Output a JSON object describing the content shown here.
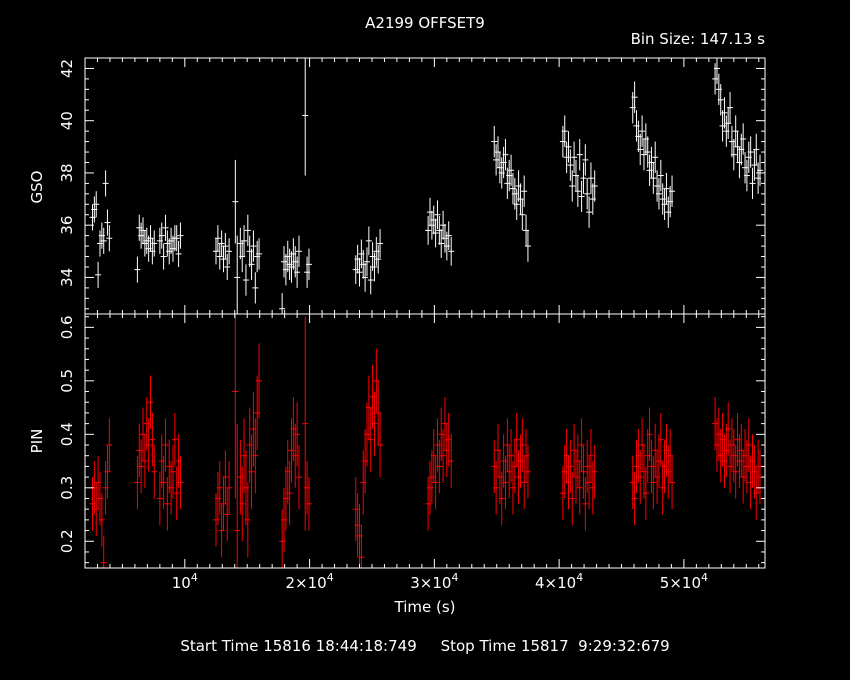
{
  "title": "A2199 OFFSET9",
  "bin_size": "Bin Size: 147.13 s",
  "footer": "Start Time 15816 18:44:18:749     Stop Time 15817  9:29:32:679",
  "colors": {
    "background": "#000000",
    "axes": "#ffffff",
    "gso": "#ffffff",
    "pin": "#ff0000"
  },
  "chart_data": [
    {
      "type": "scatter",
      "xlabel": "Time (s)",
      "ylabel": "GSO",
      "xlim": [
        2000,
        56500
      ],
      "ylim": [
        32.6,
        42.4
      ],
      "xticks": [
        10000,
        20000,
        30000,
        40000,
        50000
      ],
      "xticklabels": [
        {
          "base": "10",
          "exp": "4"
        },
        {
          "base": "2×10",
          "exp": "4"
        },
        {
          "base": "3×10",
          "exp": "4"
        },
        {
          "base": "4×10",
          "exp": "4"
        },
        {
          "base": "5×10",
          "exp": "4"
        }
      ],
      "yticks": [
        34,
        36,
        38,
        40,
        42
      ],
      "yticklabels": [
        "34",
        "36",
        "38",
        "40",
        "42"
      ],
      "error_bars": true,
      "segments": [
        {
          "x": [
            2600,
            2750,
            2900,
            3050,
            3200,
            3350,
            3500,
            3650,
            3800,
            3950
          ],
          "y": [
            36.3,
            36.6,
            36.8,
            34.1,
            35.3,
            35.6,
            35.4,
            37.6,
            36.1,
            35.5
          ],
          "err": 0.5
        },
        {
          "x": [
            6200,
            6350,
            6500,
            6650,
            6800,
            6950,
            7100,
            7250,
            7400,
            7550
          ],
          "y": [
            34.3,
            35.9,
            35.6,
            35.8,
            35.3,
            35.4,
            35.1,
            35.5,
            35.0,
            35.3
          ],
          "err": 0.5
        },
        {
          "x": [
            8000,
            8150,
            8300,
            8450,
            8600,
            8750,
            8900,
            9050,
            9200,
            9350,
            9500,
            9650
          ],
          "y": [
            35.4,
            35.6,
            34.8,
            35.9,
            35.3,
            35.0,
            35.4,
            35.1,
            35.5,
            35.5,
            34.9,
            35.6
          ],
          "err": 0.5
        },
        {
          "x": [
            12500,
            12650,
            12800,
            12950,
            13100,
            13250,
            13400,
            13550
          ],
          "y": [
            35.0,
            35.5,
            34.8,
            35.3,
            34.7,
            35.2,
            34.4,
            35.0
          ],
          "err": 0.5
        },
        {
          "x": [
            14050,
            14200
          ],
          "y": [
            36.9,
            34.0
          ],
          "err": 1.6
        },
        {
          "x": [
            14450,
            14600,
            14750,
            14900,
            15050,
            15200,
            15350,
            15500,
            15650,
            15800,
            15950
          ],
          "y": [
            35.3,
            34.8,
            35.4,
            33.9,
            35.8,
            35.0,
            34.5,
            35.2,
            33.6,
            34.8,
            34.9
          ],
          "err": 0.6
        },
        {
          "x": [
            17800,
            17950,
            18100,
            18250,
            18400,
            18550,
            18700,
            18850,
            19000,
            19150
          ],
          "y": [
            32.8,
            34.6,
            34.3,
            34.8,
            34.5,
            34.4,
            34.9,
            34.6,
            34.2,
            35.0
          ],
          "err": 0.6
        },
        {
          "x": [
            19650
          ],
          "y": [
            40.2
          ],
          "err": 2.3
        },
        {
          "x": [
            19800,
            19950
          ],
          "y": [
            34.2,
            34.5
          ],
          "err": 0.6
        },
        {
          "x": [
            23700,
            23850,
            24000,
            24150,
            24300,
            24450,
            24600,
            24750,
            24900,
            25050,
            25200,
            25350,
            25500,
            25650
          ],
          "y": [
            34.3,
            34.7,
            34.2,
            34.9,
            34.5,
            34.0,
            34.6,
            35.4,
            33.9,
            34.8,
            34.4,
            35.0,
            34.7,
            35.3
          ],
          "err": 0.55
        },
        {
          "x": [
            29500,
            29650,
            29800,
            29950,
            30100,
            30250,
            30400,
            30550,
            30700,
            30850,
            31000,
            31150,
            31350
          ],
          "y": [
            35.8,
            36.5,
            36.0,
            36.2,
            35.7,
            36.4,
            35.8,
            35.3,
            36.0,
            35.5,
            35.2,
            35.6,
            35.0
          ],
          "err": 0.55
        },
        {
          "x": [
            34800,
            34950,
            35100,
            35250,
            35400,
            35550,
            35700,
            35850,
            36000,
            36150,
            36300,
            36450,
            36600,
            36750,
            36900,
            37050,
            37200,
            37350,
            37500
          ],
          "y": [
            39.2,
            38.5,
            38.8,
            38.2,
            38.0,
            38.4,
            38.7,
            37.6,
            37.9,
            38.1,
            37.4,
            37.2,
            36.8,
            37.5,
            37.0,
            36.4,
            37.3,
            35.8,
            35.2
          ],
          "err": 0.6
        },
        {
          "x": [
            40300,
            40450,
            40600,
            40750,
            40900,
            41050,
            41200,
            41350,
            41500,
            41650,
            41800,
            41950,
            42100,
            42250,
            42400,
            42550,
            42700,
            42850
          ],
          "y": [
            39.2,
            39.6,
            38.6,
            39.0,
            38.3,
            37.5,
            38.6,
            37.9,
            37.3,
            38.7,
            37.1,
            37.8,
            38.5,
            37.2,
            36.5,
            37.8,
            37.0,
            37.5
          ],
          "err": 0.6
        },
        {
          "x": [
            45900,
            46050,
            46200,
            46350,
            46500,
            46650,
            46800,
            46950,
            47100,
            47250,
            47400,
            47550,
            47700,
            47850,
            48000,
            48150,
            48300,
            48450,
            48600,
            48750,
            48900,
            49050
          ],
          "y": [
            40.5,
            40.9,
            39.8,
            39.4,
            38.9,
            39.6,
            38.7,
            39.3,
            38.8,
            38.1,
            38.4,
            37.8,
            38.6,
            37.5,
            37.2,
            37.9,
            37.0,
            36.8,
            37.4,
            36.5,
            36.9,
            37.3
          ],
          "err": 0.6
        },
        {
          "x": [
            52500,
            52650,
            52800,
            52950,
            53100,
            53250,
            53400,
            53550,
            53700,
            53850,
            54000,
            54150,
            54300,
            54450,
            54600,
            54750,
            54900,
            55050,
            55200,
            55350,
            55500,
            55650,
            55800,
            55950,
            56100
          ],
          "y": [
            41.6,
            42.0,
            41.2,
            40.8,
            39.8,
            40.3,
            39.6,
            39.9,
            40.5,
            39.2,
            38.7,
            39.6,
            39.0,
            38.4,
            38.9,
            39.3,
            38.2,
            37.9,
            38.6,
            38.8,
            37.6,
            38.3,
            38.9,
            37.8,
            38.1
          ],
          "err": 0.6
        }
      ]
    },
    {
      "type": "scatter",
      "xlabel": "Time (s)",
      "ylabel": "PIN",
      "xlim": [
        2000,
        56500
      ],
      "ylim": [
        0.15,
        0.625
      ],
      "xticks": [
        10000,
        20000,
        30000,
        40000,
        50000
      ],
      "yticks": [
        0.2,
        0.3,
        0.4,
        0.5,
        0.6
      ],
      "yticklabels": [
        "0.2",
        "0.3",
        "0.4",
        "0.5",
        "0.6"
      ],
      "error_bars": true,
      "segments": [
        {
          "x": [
            2600,
            2750,
            2900,
            3050,
            3200,
            3350,
            3500,
            3650,
            3800,
            3950
          ],
          "y": [
            0.27,
            0.3,
            0.26,
            0.31,
            0.28,
            0.24,
            0.16,
            0.3,
            0.33,
            0.38
          ],
          "err": 0.05
        },
        {
          "x": [
            6200,
            6350,
            6500,
            6650,
            6800,
            6950,
            7100,
            7250,
            7400,
            7550
          ],
          "y": [
            0.31,
            0.37,
            0.34,
            0.4,
            0.35,
            0.42,
            0.38,
            0.46,
            0.39,
            0.33
          ],
          "err": 0.05
        },
        {
          "x": [
            8000,
            8150,
            8300,
            8450,
            8600,
            8750,
            8900,
            9050,
            9200,
            9350,
            9500,
            9650
          ],
          "y": [
            0.28,
            0.35,
            0.31,
            0.38,
            0.27,
            0.34,
            0.3,
            0.33,
            0.39,
            0.29,
            0.35,
            0.31
          ],
          "err": 0.05
        },
        {
          "x": [
            12500,
            12650,
            12800,
            12950,
            13100,
            13250,
            13400,
            13550
          ],
          "y": [
            0.24,
            0.28,
            0.3,
            0.22,
            0.27,
            0.32,
            0.25,
            0.3
          ],
          "err": 0.05
        },
        {
          "x": [
            14050,
            14200
          ],
          "y": [
            0.48,
            0.22
          ],
          "err": 0.2
        },
        {
          "x": [
            14450,
            14600,
            14750,
            14900,
            15050,
            15200,
            15350,
            15500,
            15650,
            15800,
            15950
          ],
          "y": [
            0.32,
            0.27,
            0.36,
            0.3,
            0.24,
            0.38,
            0.33,
            0.41,
            0.36,
            0.44,
            0.5
          ],
          "err": 0.07
        },
        {
          "x": [
            17800,
            17950,
            18100,
            18250,
            18400,
            18550,
            18700,
            18850,
            19000,
            19150
          ],
          "y": [
            0.2,
            0.24,
            0.28,
            0.33,
            0.29,
            0.37,
            0.41,
            0.36,
            0.4,
            0.32
          ],
          "err": 0.06
        },
        {
          "x": [
            19650
          ],
          "y": [
            0.42
          ],
          "err": 0.2
        },
        {
          "x": [
            19800,
            19950
          ],
          "y": [
            0.3,
            0.27
          ],
          "err": 0.05
        },
        {
          "x": [
            23700,
            23850,
            24000,
            24150,
            24300,
            24450,
            24600,
            24750,
            24900,
            25050,
            25200,
            25350,
            25500,
            25650
          ],
          "y": [
            0.26,
            0.23,
            0.21,
            0.17,
            0.31,
            0.35,
            0.4,
            0.45,
            0.39,
            0.47,
            0.42,
            0.5,
            0.44,
            0.38
          ],
          "err": 0.06
        },
        {
          "x": [
            29500,
            29650,
            29800,
            29950,
            30100,
            30250,
            30400,
            30550,
            30700,
            30850,
            31000,
            31150,
            31350
          ],
          "y": [
            0.27,
            0.3,
            0.32,
            0.36,
            0.31,
            0.38,
            0.34,
            0.4,
            0.36,
            0.42,
            0.37,
            0.39,
            0.35
          ],
          "err": 0.05
        },
        {
          "x": [
            34800,
            34950,
            35100,
            35250,
            35400,
            35550,
            35700,
            35850,
            36000,
            36150,
            36300,
            36450,
            36600,
            36750,
            36900,
            37050,
            37200,
            37350,
            37500
          ],
          "y": [
            0.34,
            0.3,
            0.37,
            0.32,
            0.28,
            0.35,
            0.31,
            0.38,
            0.33,
            0.36,
            0.3,
            0.34,
            0.39,
            0.32,
            0.35,
            0.38,
            0.31,
            0.36,
            0.33
          ],
          "err": 0.05
        },
        {
          "x": [
            40300,
            40450,
            40600,
            40750,
            40900,
            41050,
            41200,
            41350,
            41500,
            41650,
            41800,
            41950,
            42100,
            42250,
            42400,
            42550,
            42700,
            42850
          ],
          "y": [
            0.29,
            0.33,
            0.36,
            0.31,
            0.34,
            0.28,
            0.37,
            0.32,
            0.35,
            0.3,
            0.38,
            0.33,
            0.27,
            0.34,
            0.31,
            0.36,
            0.3,
            0.33
          ],
          "err": 0.05
        },
        {
          "x": [
            45900,
            46050,
            46200,
            46350,
            46500,
            46650,
            46800,
            46950,
            47100,
            47250,
            47400,
            47550,
            47700,
            47850,
            48000,
            48150,
            48300,
            48450,
            48600,
            48750,
            48900,
            49050
          ],
          "y": [
            0.31,
            0.28,
            0.34,
            0.36,
            0.32,
            0.38,
            0.33,
            0.29,
            0.36,
            0.4,
            0.34,
            0.31,
            0.37,
            0.32,
            0.35,
            0.39,
            0.3,
            0.34,
            0.37,
            0.33,
            0.36,
            0.31
          ],
          "err": 0.05
        },
        {
          "x": [
            52500,
            52650,
            52800,
            52950,
            53100,
            53250,
            53400,
            53550,
            53700,
            53850,
            54000,
            54150,
            54300,
            54450,
            54600,
            54750,
            54900,
            55050,
            55200,
            55350,
            55500,
            55650,
            55800,
            55950,
            56100
          ],
          "y": [
            0.42,
            0.38,
            0.4,
            0.36,
            0.39,
            0.35,
            0.37,
            0.41,
            0.34,
            0.38,
            0.36,
            0.33,
            0.39,
            0.35,
            0.37,
            0.32,
            0.36,
            0.34,
            0.38,
            0.31,
            0.35,
            0.33,
            0.29,
            0.34,
            0.32
          ],
          "err": 0.05
        }
      ]
    }
  ]
}
